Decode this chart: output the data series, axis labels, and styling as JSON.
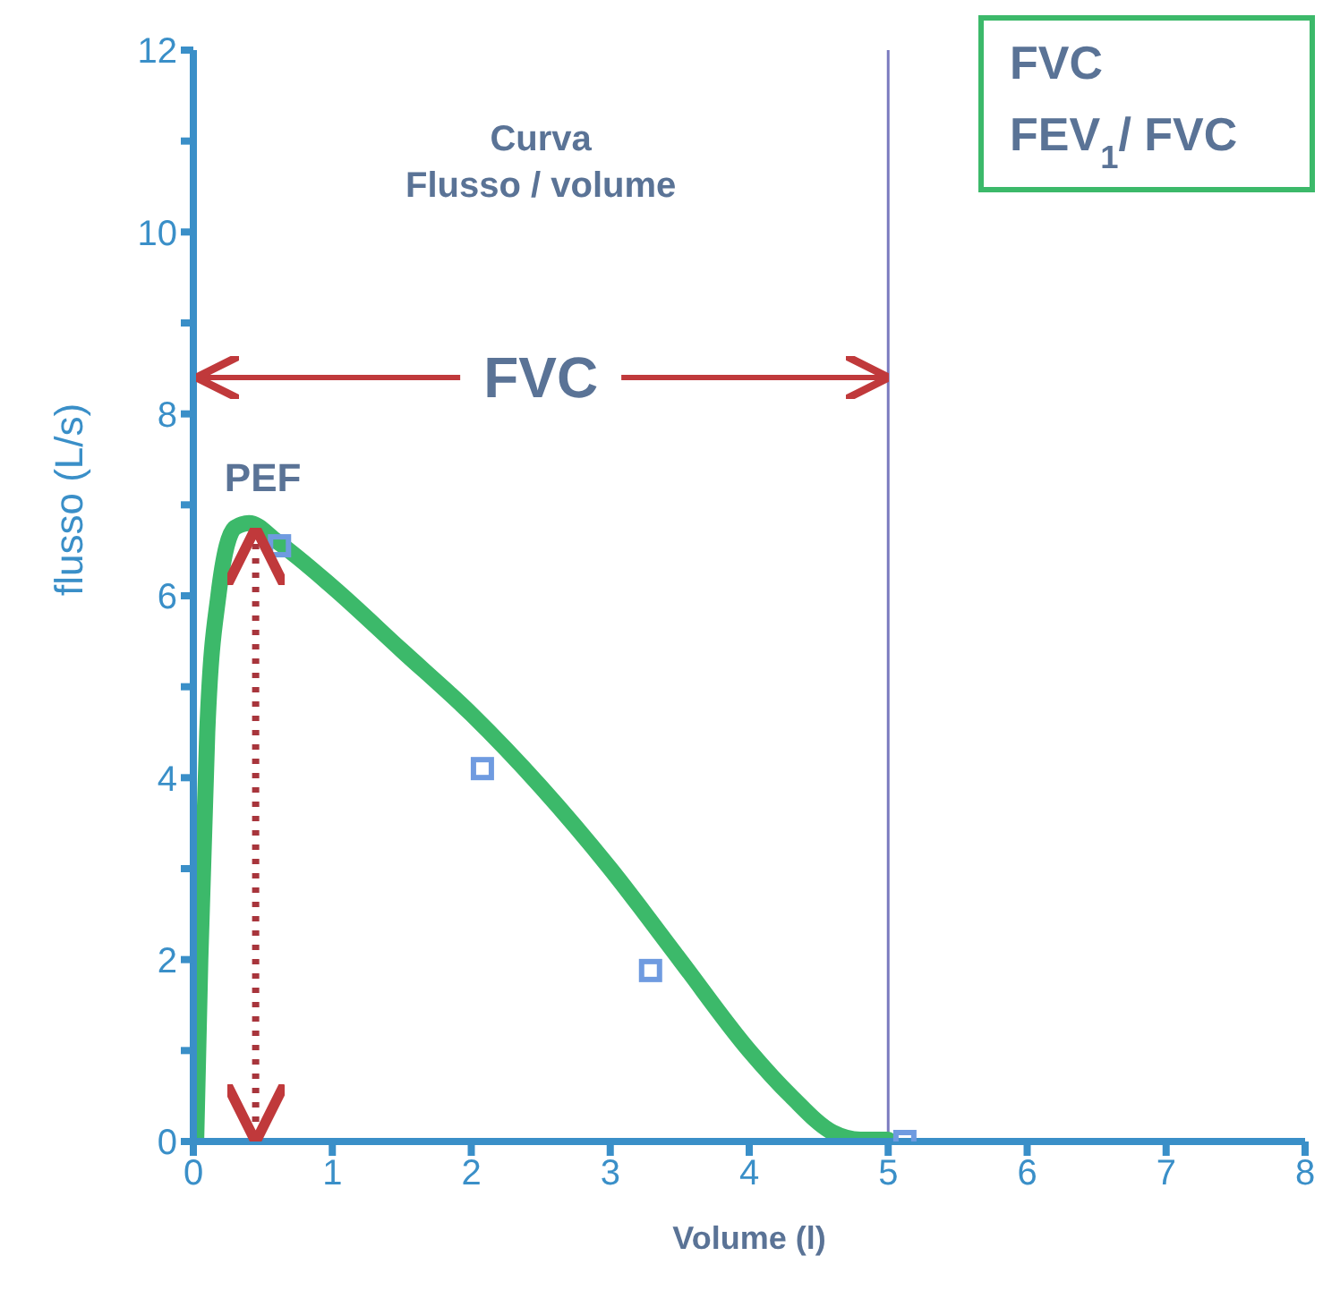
{
  "chart_data": {
    "type": "line",
    "title": "Curva\nFlusso / volume",
    "xlabel": "Volume (l)",
    "ylabel": "flusso (L/s)",
    "xlim": [
      0,
      8
    ],
    "xticks": [
      0,
      1,
      2,
      3,
      4,
      5,
      6,
      7,
      8
    ],
    "ylim": [
      0,
      12
    ],
    "yticks": [
      0,
      {
        "value": 1,
        "label": null
      },
      2,
      {
        "value": 3,
        "label": null
      },
      4,
      {
        "value": 5,
        "label": null
      },
      6,
      {
        "value": 7,
        "label": null
      },
      8,
      {
        "value": 9,
        "label": null
      },
      10,
      {
        "value": 11,
        "label": null
      },
      12
    ],
    "grid": false,
    "legend": false,
    "series": [
      {
        "marker": "none",
        "color": "#3cb96a",
        "x": [
          0.02,
          0.05,
          0.1,
          0.18,
          0.3,
          0.4,
          0.6,
          1,
          1.5,
          2,
          2.5,
          3,
          3.5,
          4,
          4.3,
          4.6,
          4.8,
          5
        ],
        "values": [
          0,
          2,
          4.5,
          6,
          6.75,
          6.8,
          6.6,
          6.1,
          5.4,
          4.7,
          3.9,
          3.0,
          2.0,
          1.0,
          0.5,
          0.1,
          0.02,
          0.02
        ]
      },
      {
        "type": "scatter",
        "marker": "square",
        "color": "#6f9be0",
        "x": [
          0.62,
          2.08,
          3.29,
          5.12
        ],
        "values": [
          6.55,
          4.1,
          1.88,
          0
        ]
      }
    ],
    "ref_lines": [
      {
        "axis": "x",
        "value": 5,
        "color": "#7b7bbf"
      }
    ],
    "annotations": [
      {
        "text": "FVC",
        "x": 5,
        "y": 8.4
      },
      "PEF",
      "FVC",
      "FEV$_{1}$/ FVC"
    ]
  }
}
